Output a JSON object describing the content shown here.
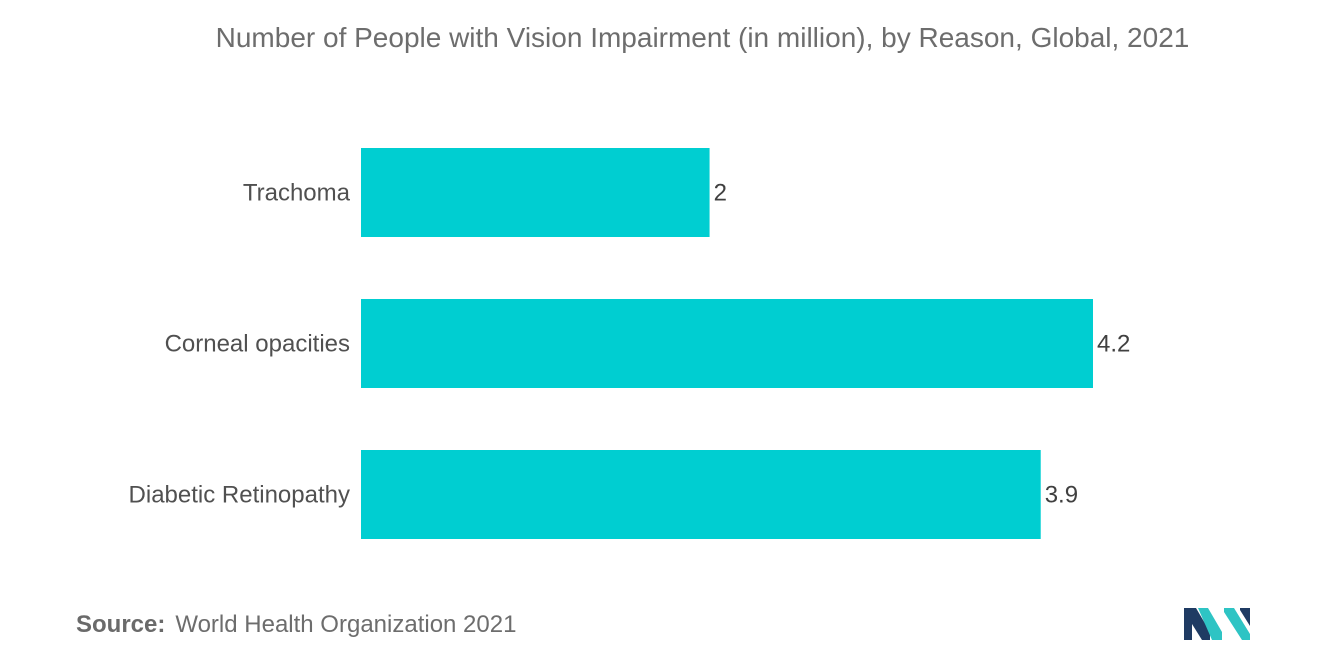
{
  "chart_data": {
    "type": "bar",
    "orientation": "horizontal",
    "title": "Number of People with Vision Impairment (in million), by Reason, Global, 2021",
    "categories": [
      "Trachoma",
      "Corneal opacities",
      "Diabetic Retinopathy"
    ],
    "values": [
      2,
      4.2,
      3.9
    ],
    "value_labels": [
      "2",
      "4.2",
      "3.9"
    ],
    "xlim": [
      0,
      4.2
    ],
    "grid": false,
    "legend": "none",
    "bar_color": "#00ced1"
  },
  "source": {
    "label": "Source:",
    "text": "World Health Organization 2021"
  },
  "logo": {
    "icon": "mordor-intelligence-logo-icon",
    "colors": [
      "#1f3b63",
      "#2ec4c4"
    ]
  }
}
